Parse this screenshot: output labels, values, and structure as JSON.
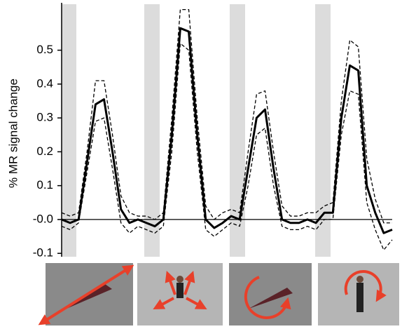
{
  "chart_data": {
    "type": "line",
    "y_label": "% MR signal change",
    "ylim": [
      -0.11,
      0.64
    ],
    "yticks": [
      -0.1,
      {
        "value": 0,
        "label": "-0.0"
      },
      0.1,
      0.2,
      0.3,
      0.4,
      0.5
    ],
    "zero_line": true,
    "series": [
      {
        "color": "#000000",
        "dashed": false,
        "width": 3,
        "values": [
          0,
          -0.01,
          0,
          0.17,
          0.34,
          0.355,
          0.2,
          0.03,
          -0.01,
          0,
          -0.01,
          -0.02,
          0,
          0.25,
          0.565,
          0.555,
          0.25,
          0,
          -0.025,
          -0.01,
          0.01,
          0,
          0.15,
          0.3,
          0.325,
          0.15,
          0,
          -0.01,
          -0.01,
          0,
          -0.01,
          0.02,
          0.02,
          0.3,
          0.455,
          0.44,
          0.1,
          0.02,
          -0.04,
          -0.03
        ]
      },
      {
        "color": "#000000",
        "dashed": true,
        "width": 1.3,
        "values": [
          0.02,
          0.01,
          0.02,
          0.2,
          0.41,
          0.41,
          0.25,
          0.07,
          0.02,
          0.01,
          0.01,
          0,
          0.02,
          0.3,
          0.62,
          0.62,
          0.3,
          0.04,
          0,
          0.02,
          0.03,
          0.02,
          0.2,
          0.37,
          0.38,
          0.2,
          0.04,
          0.01,
          0.01,
          0.02,
          0.02,
          0.04,
          0.05,
          0.35,
          0.53,
          0.51,
          0.18,
          0.06,
          -0.01,
          -0.01
        ]
      },
      {
        "color": "#000000",
        "dashed": true,
        "width": 1.3,
        "values": [
          -0.02,
          -0.03,
          -0.01,
          0.14,
          0.29,
          0.3,
          0.15,
          -0.01,
          -0.04,
          -0.02,
          -0.03,
          -0.04,
          -0.02,
          0.2,
          0.52,
          0.5,
          0.2,
          -0.03,
          -0.05,
          -0.03,
          -0.01,
          -0.02,
          0.1,
          0.25,
          0.27,
          0.1,
          -0.02,
          -0.03,
          -0.03,
          -0.02,
          -0.03,
          0,
          0,
          0.25,
          0.38,
          0.37,
          0.05,
          -0.03,
          -0.09,
          -0.06
        ]
      }
    ]
  }
}
